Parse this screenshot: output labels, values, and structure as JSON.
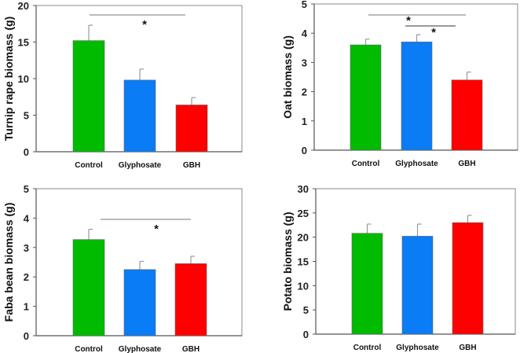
{
  "colors": {
    "Control": "#00bb00",
    "Glyphosate": "#0a7cf5",
    "GBH": "#ff0000",
    "axis": "#555555",
    "error": "#999999"
  },
  "chart_data": [
    {
      "type": "bar",
      "title": "",
      "categories": [
        "Control",
        "Glyphosate",
        "GBH"
      ],
      "values": [
        15.2,
        9.8,
        6.4
      ],
      "errors": [
        2.1,
        1.5,
        1.0
      ],
      "ylabel": "Turnip rape biomass (g)",
      "ylim": [
        0,
        20
      ],
      "yticks": [
        "0",
        "5",
        "10",
        "15",
        "20"
      ],
      "annotations": [
        {
          "from": "Control",
          "to": "GBH",
          "label": "*"
        }
      ]
    },
    {
      "type": "bar",
      "title": "",
      "categories": [
        "Control",
        "Glyphosate",
        "GBH"
      ],
      "values": [
        3.6,
        3.7,
        2.4
      ],
      "errors": [
        0.2,
        0.25,
        0.27
      ],
      "ylabel": "Oat biomass (g)",
      "ylim": [
        0,
        5
      ],
      "yticks": [
        "0",
        "1",
        "2",
        "3",
        "4",
        "5"
      ],
      "annotations": [
        {
          "from": "Control",
          "to": "GBH",
          "label": "*"
        },
        {
          "from": "Glyphosate",
          "to": "GBH",
          "label": "*"
        }
      ]
    },
    {
      "type": "bar",
      "title": "",
      "categories": [
        "Control",
        "Glyphosate",
        "GBH"
      ],
      "values": [
        3.27,
        2.25,
        2.45
      ],
      "errors": [
        0.35,
        0.28,
        0.25
      ],
      "ylabel": "Faba bean biomass (g)",
      "ylim": [
        0,
        5
      ],
      "yticks": [
        "0",
        "1",
        "2",
        "3",
        "4",
        "5"
      ],
      "annotations": [
        {
          "from": "Control",
          "to": "GBH",
          "label": "*"
        }
      ]
    },
    {
      "type": "bar",
      "title": "",
      "categories": [
        "Control",
        "Glyphosate",
        "GBH"
      ],
      "values": [
        20.8,
        20.2,
        23.0
      ],
      "errors": [
        1.9,
        2.5,
        1.5
      ],
      "ylabel": "Potato biomass (g)",
      "ylim": [
        0,
        30
      ],
      "yticks": [
        "0",
        "5",
        "10",
        "15",
        "20",
        "25",
        "30"
      ],
      "annotations": []
    }
  ]
}
